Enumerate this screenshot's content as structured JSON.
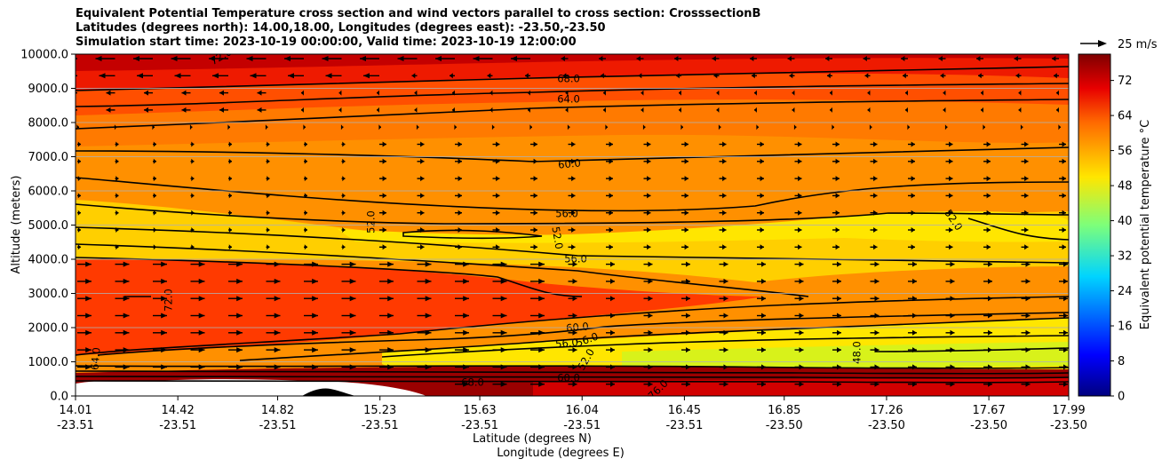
{
  "title": {
    "line1": "Equivalent Potential Temperature cross section and wind vectors parallel to cross section: CrosssectionB",
    "line2": "Latitudes (degrees north): 14.00,18.00, Longitudes (degrees east): -23.50,-23.50",
    "line3": "Simulation start time: 2023-10-19 00:00:00, Valid time: 2023-10-19 12:00:00"
  },
  "chart_data": {
    "type": "heatmap",
    "title": "Equivalent Potential Temperature cross section and wind vectors parallel to cross section: CrosssectionB",
    "ylabel": "Altitude (meters)",
    "xlabel": "Latitude (degrees N)",
    "xlabel2": "Longitude (degrees E)",
    "ylim": [
      0,
      10000
    ],
    "yticks": [
      "0.0",
      "1000.0",
      "2000.0",
      "3000.0",
      "4000.0",
      "5000.0",
      "6000.0",
      "7000.0",
      "8000.0",
      "9000.0",
      "10000.0"
    ],
    "xticks_lat": [
      "14.01",
      "14.42",
      "14.82",
      "15.23",
      "15.63",
      "16.04",
      "16.45",
      "16.85",
      "17.26",
      "17.67",
      "17.99"
    ],
    "xticks_lon": [
      "-23.51",
      "-23.51",
      "-23.51",
      "-23.51",
      "-23.51",
      "-23.51",
      "-23.51",
      "-23.50",
      "-23.50",
      "-23.50",
      "-23.50"
    ],
    "grid": true,
    "colorbar": {
      "label": "Equivalent potential temperature $^\\circ$C",
      "range": [
        0,
        78
      ],
      "ticks": [
        "0",
        "8",
        "16",
        "24",
        "32",
        "40",
        "48",
        "56",
        "64",
        "72"
      ]
    },
    "quiver_key": "25 m/s",
    "contour_labels": [
      "68.0",
      "64.0",
      "60.0",
      "56.0",
      "52.0",
      "52.0",
      "52.0",
      "56.0",
      "60.0",
      "56.0",
      "56.0",
      "52.0",
      "48.0",
      "68.0",
      "64.0",
      "60.0",
      "76.0",
      "72.0",
      "72.0"
    ],
    "approx_profile": {
      "altitude_m": [
        0,
        500,
        1000,
        1500,
        2000,
        3000,
        4000,
        5000,
        6000,
        7000,
        8000,
        9000,
        10000
      ],
      "theta_e_north_C": [
        76,
        70,
        50,
        50,
        54,
        57,
        56,
        52,
        55,
        59,
        62,
        67,
        73
      ],
      "theta_e_south_C": [
        76,
        70,
        66,
        68,
        66,
        67,
        60,
        55,
        58,
        61,
        64,
        70,
        75
      ]
    }
  }
}
